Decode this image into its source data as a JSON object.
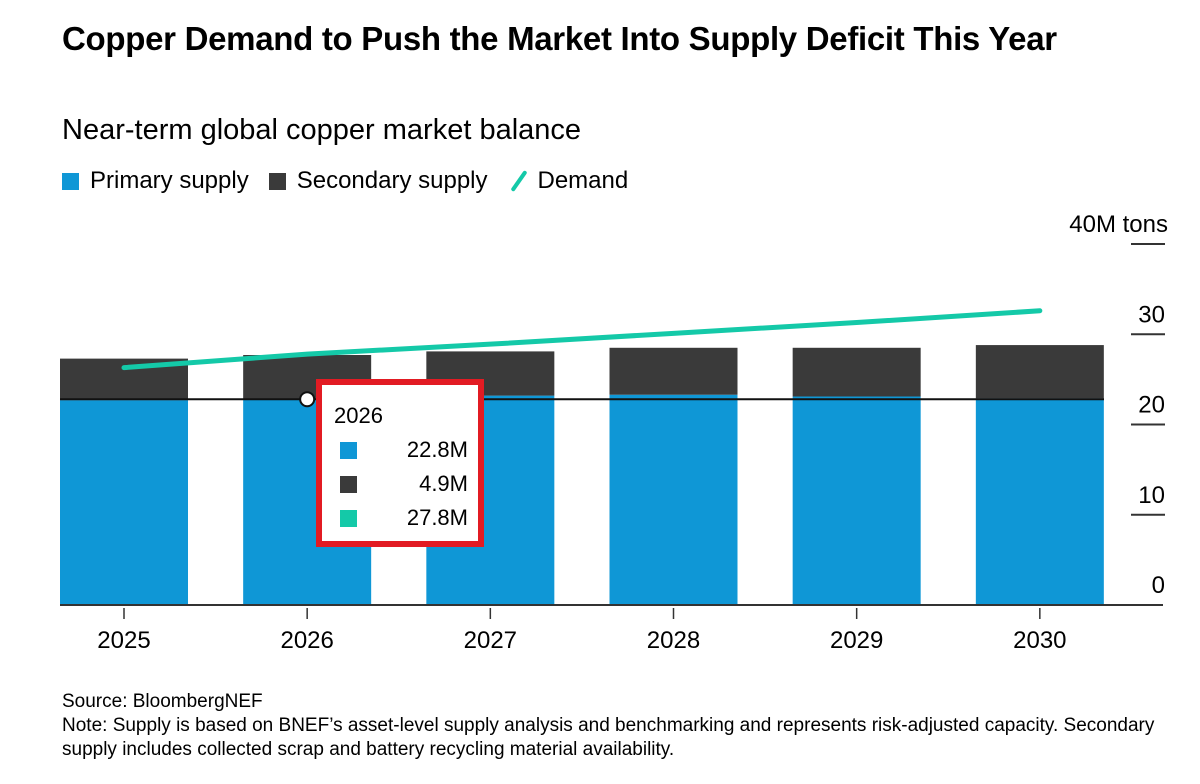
{
  "header": {
    "title": "Copper Demand to Push the Market Into Supply Deficit This Year",
    "subtitle": "Near-term global copper market balance"
  },
  "legend": [
    {
      "label": "Primary supply",
      "icon": "square-swatch",
      "color": "#0f97d6"
    },
    {
      "label": "Secondary supply",
      "icon": "square-swatch",
      "color": "#3a3a3a"
    },
    {
      "label": "Demand",
      "icon": "line-swatch",
      "color": "#14c9a8"
    }
  ],
  "tooltip": {
    "year": "2026",
    "rows": [
      {
        "series": "Primary supply",
        "color": "#0f97d6",
        "value": "22.8M"
      },
      {
        "series": "Secondary supply",
        "color": "#3a3a3a",
        "value": "4.9M"
      },
      {
        "series": "Demand",
        "color": "#14c9a8",
        "value": "27.8M"
      }
    ],
    "highlight_color": "#e21b23"
  },
  "footer": {
    "source": "Source: BloombergNEF",
    "note": "Note: Supply is based on BNEF’s asset-level supply analysis and benchmarking and represents risk-adjusted capacity. Secondary supply includes collected scrap and battery recycling material availability."
  },
  "chart_data": {
    "type": "bar",
    "stacked": true,
    "title": "Copper Demand to Push the Market Into Supply Deficit This Year",
    "subtitle": "Near-term global copper market balance",
    "xlabel": "",
    "ylabel": "M tons",
    "y_unit_label": "40M tons",
    "categories": [
      "2025",
      "2026",
      "2027",
      "2028",
      "2029",
      "2030"
    ],
    "series": [
      {
        "name": "Primary supply",
        "type": "bar",
        "color": "#0f97d6",
        "values": [
          22.7,
          22.8,
          23.2,
          23.3,
          23.1,
          22.9
        ]
      },
      {
        "name": "Secondary supply",
        "type": "bar",
        "color": "#3a3a3a",
        "values": [
          4.6,
          4.9,
          4.9,
          5.2,
          5.4,
          5.9
        ]
      },
      {
        "name": "Demand",
        "type": "line",
        "color": "#14c9a8",
        "values": [
          26.3,
          27.8,
          28.9,
          30.1,
          31.3,
          32.6
        ]
      }
    ],
    "ylim": [
      0,
      40
    ],
    "yticks": [
      0,
      10,
      20,
      30,
      40
    ],
    "ytick_labels": [
      "0",
      "10",
      "20",
      "30",
      "40M tons"
    ],
    "y_axis_side": "right",
    "grid": false,
    "legend_position": "top-left",
    "hover": {
      "category": "2026",
      "reference_value": 22.8
    }
  }
}
